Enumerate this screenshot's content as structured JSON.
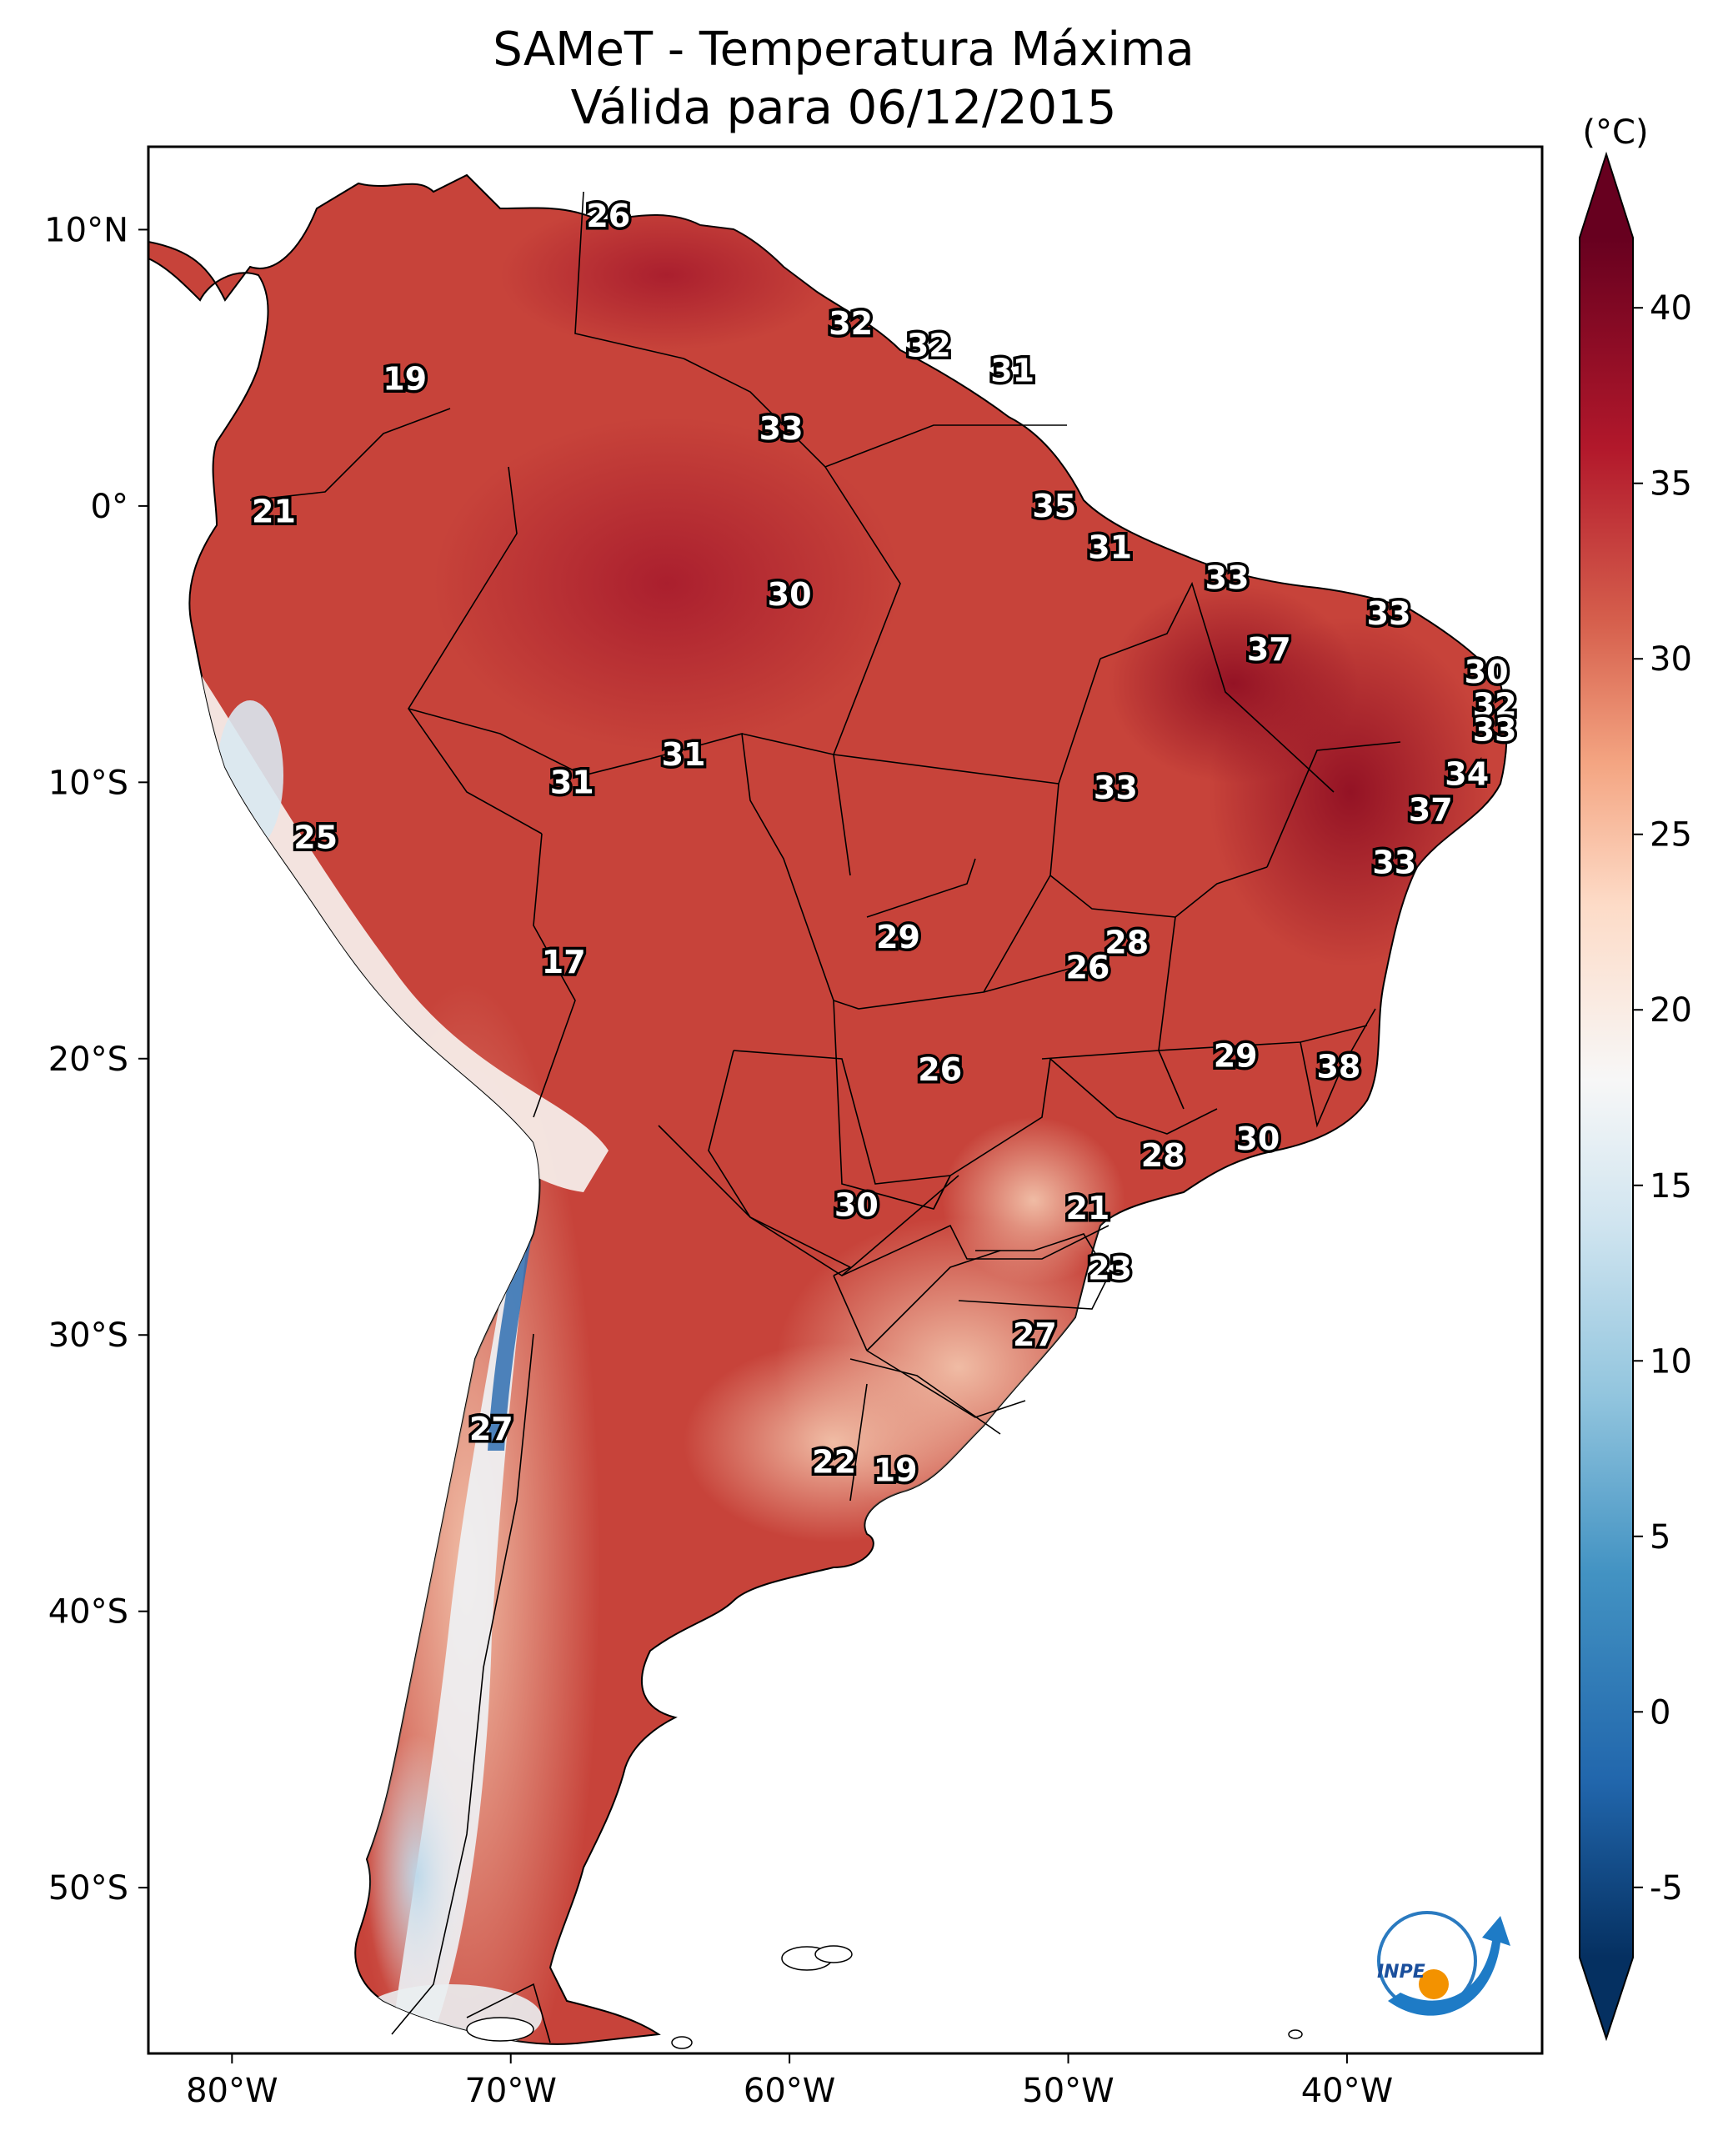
{
  "figure": {
    "title_line1": "SAMeT - Temperatura Máxima",
    "title_line2": "Válida para 06/12/2015"
  },
  "map": {
    "lon_ticks": [
      "80°W",
      "70°W",
      "60°W",
      "50°W",
      "40°W"
    ],
    "lat_ticks": [
      "10°N",
      "0°",
      "10°S",
      "20°S",
      "30°S",
      "40°S",
      "50°S"
    ],
    "extent": {
      "lon": [
        -83,
        -33
      ],
      "lat": [
        -56,
        13
      ]
    },
    "point_values": [
      {
        "label": "26",
        "lon": -66.5,
        "lat": 10.5
      },
      {
        "label": "19",
        "lon": -73.8,
        "lat": 4.6
      },
      {
        "label": "32",
        "lon": -57.8,
        "lat": 6.6
      },
      {
        "label": "32",
        "lon": -55.0,
        "lat": 5.8
      },
      {
        "label": "31",
        "lon": -52.0,
        "lat": 4.9
      },
      {
        "label": "33",
        "lon": -60.3,
        "lat": 2.8
      },
      {
        "label": "21",
        "lon": -78.5,
        "lat": -0.2
      },
      {
        "label": "35",
        "lon": -50.5,
        "lat": 0.0
      },
      {
        "label": "31",
        "lon": -48.5,
        "lat": -1.5
      },
      {
        "label": "33",
        "lon": -44.3,
        "lat": -2.6
      },
      {
        "label": "30",
        "lon": -60.0,
        "lat": -3.2
      },
      {
        "label": "33",
        "lon": -38.5,
        "lat": -3.9
      },
      {
        "label": "37",
        "lon": -42.8,
        "lat": -5.2
      },
      {
        "label": "30",
        "lon": -35.0,
        "lat": -6.0
      },
      {
        "label": "32",
        "lon": -34.7,
        "lat": -7.2
      },
      {
        "label": "33",
        "lon": -34.7,
        "lat": -8.1
      },
      {
        "label": "31",
        "lon": -63.8,
        "lat": -9.0
      },
      {
        "label": "31",
        "lon": -67.8,
        "lat": -10.0
      },
      {
        "label": "33",
        "lon": -48.3,
        "lat": -10.2
      },
      {
        "label": "34",
        "lon": -35.7,
        "lat": -9.7
      },
      {
        "label": "37",
        "lon": -37.0,
        "lat": -11.0
      },
      {
        "label": "25",
        "lon": -77.0,
        "lat": -12.0
      },
      {
        "label": "33",
        "lon": -38.3,
        "lat": -12.9
      },
      {
        "label": "28",
        "lon": -47.9,
        "lat": -15.8
      },
      {
        "label": "29",
        "lon": -56.1,
        "lat": -15.6
      },
      {
        "label": "26",
        "lon": -49.3,
        "lat": -16.7
      },
      {
        "label": "17",
        "lon": -68.1,
        "lat": -16.5
      },
      {
        "label": "29",
        "lon": -44.0,
        "lat": -19.9
      },
      {
        "label": "38",
        "lon": -40.3,
        "lat": -20.3
      },
      {
        "label": "26",
        "lon": -54.6,
        "lat": -20.4
      },
      {
        "label": "30",
        "lon": -43.2,
        "lat": -22.9
      },
      {
        "label": "28",
        "lon": -46.6,
        "lat": -23.5
      },
      {
        "label": "21",
        "lon": -49.3,
        "lat": -25.4
      },
      {
        "label": "30",
        "lon": -57.6,
        "lat": -25.3
      },
      {
        "label": "23",
        "lon": -48.5,
        "lat": -27.6
      },
      {
        "label": "27",
        "lon": -51.2,
        "lat": -30.0
      },
      {
        "label": "27",
        "lon": -70.7,
        "lat": -33.4
      },
      {
        "label": "22",
        "lon": -58.4,
        "lat": -34.6
      },
      {
        "label": "19",
        "lon": -56.2,
        "lat": -34.9
      }
    ]
  },
  "colorbar": {
    "unit": "(°C)",
    "ticks": [
      "40",
      "35",
      "30",
      "25",
      "20",
      "15",
      "10",
      "5",
      "0",
      "-5"
    ],
    "range": [
      -7,
      42
    ],
    "stops": [
      {
        "value": -7,
        "color": "#053061"
      },
      {
        "value": -2,
        "color": "#2166ac"
      },
      {
        "value": 4,
        "color": "#4393c3"
      },
      {
        "value": 9,
        "color": "#92c5de"
      },
      {
        "value": 14,
        "color": "#d1e5f0"
      },
      {
        "value": 18,
        "color": "#f7f7f7"
      },
      {
        "value": 23,
        "color": "#fddbc7"
      },
      {
        "value": 27,
        "color": "#f4a582"
      },
      {
        "value": 31,
        "color": "#d6604d"
      },
      {
        "value": 36,
        "color": "#b2182b"
      },
      {
        "value": 42,
        "color": "#67001f"
      }
    ]
  },
  "logo": {
    "text": "INPE"
  },
  "colors": {
    "land": "#c7433a",
    "land_hot": "#a81e2c",
    "land_cool": "#eeb39a",
    "andes": "#f3e6e0",
    "ocean": "#ffffff",
    "border": "#000000"
  }
}
